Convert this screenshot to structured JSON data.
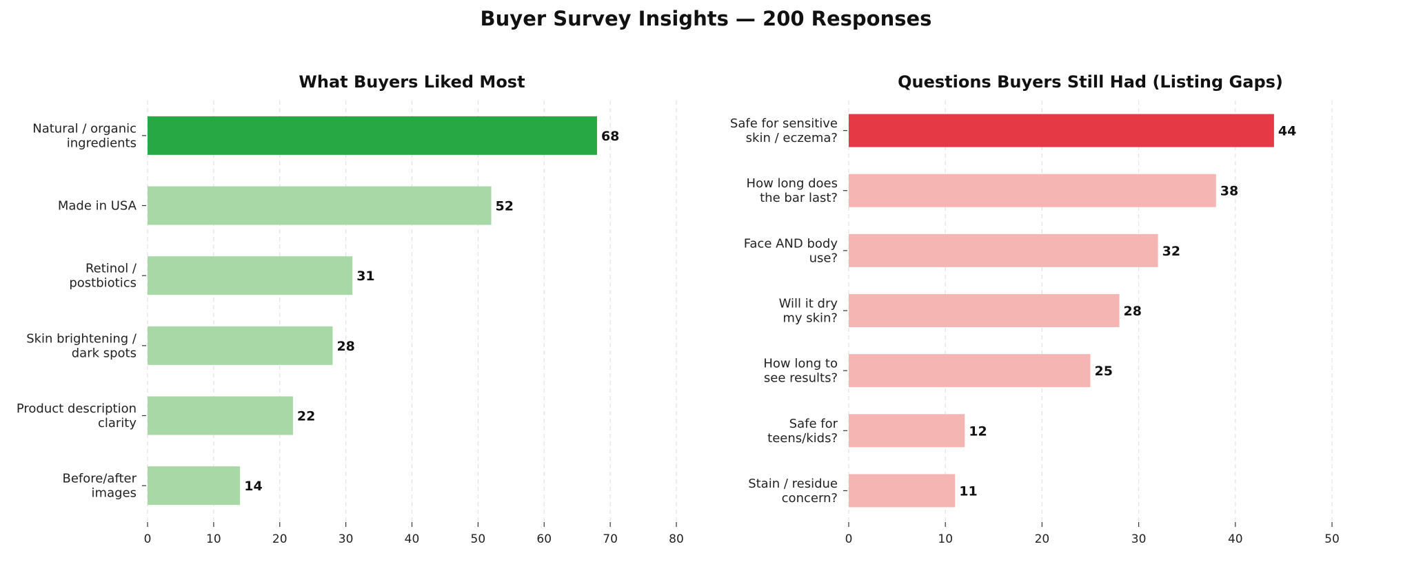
{
  "page": {
    "title": "Buyer Survey Insights — 200 Responses"
  },
  "chart_data": [
    {
      "type": "bar",
      "orientation": "horizontal",
      "title": "What Buyers Liked Most",
      "xlabel": "",
      "ylabel": "",
      "categories": [
        "Natural / organic\ningredients",
        "Made in USA",
        "Retinol /\npostbiotics",
        "Skin brightening /\ndark spots",
        "Product description\nclarity",
        "Before/after\nimages"
      ],
      "values": [
        68,
        52,
        31,
        28,
        22,
        14
      ],
      "xlim": [
        0,
        80
      ],
      "xticks": [
        0,
        10,
        20,
        30,
        40,
        50,
        60,
        70,
        80
      ],
      "grid": "vertical dashed",
      "colors": {
        "highlight": "#28a745",
        "normal": "#a8d8a6"
      },
      "data_labels": true
    },
    {
      "type": "bar",
      "orientation": "horizontal",
      "title": "Questions Buyers Still Had (Listing Gaps)",
      "xlabel": "",
      "ylabel": "",
      "categories": [
        "Safe for sensitive\nskin / eczema?",
        "How long does\nthe bar last?",
        "Face AND body\nuse?",
        "Will it dry\nmy skin?",
        "How long to\nsee results?",
        "Safe for\nteens/kids?",
        "Stain / residue\nconcern?"
      ],
      "values": [
        44,
        38,
        32,
        28,
        25,
        12,
        11
      ],
      "xlim": [
        0,
        50
      ],
      "xticks": [
        0,
        10,
        20,
        30,
        40,
        50
      ],
      "grid": "vertical dashed",
      "colors": {
        "highlight": "#e63946",
        "normal": "#f5b5b2"
      },
      "data_labels": true
    }
  ]
}
